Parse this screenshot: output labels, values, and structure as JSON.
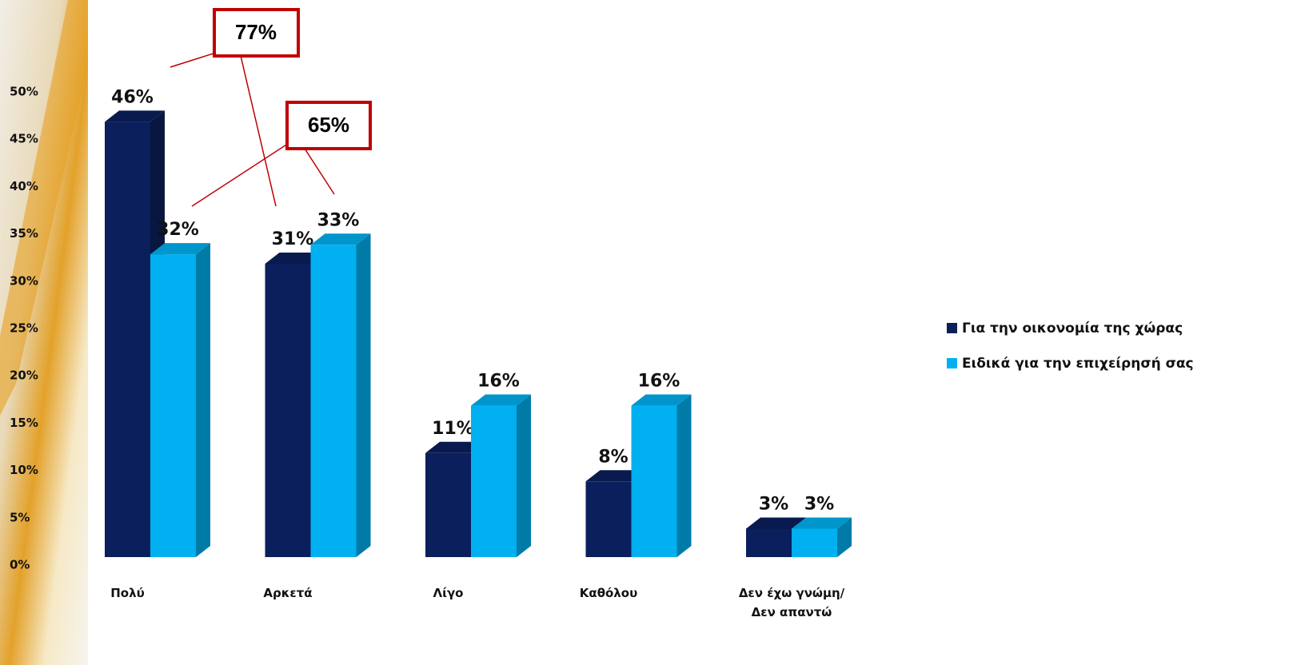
{
  "chart_data": {
    "type": "bar",
    "categories": [
      "Πολύ",
      "Αρκετά",
      "Λίγο",
      "Καθόλου",
      "Δεν έχω γνώμη/Δεν απαντώ"
    ],
    "series": [
      {
        "name": "Για την οικονομία της χώρας",
        "color": "#0b1f5c",
        "values": [
          46,
          31,
          11,
          8,
          3
        ],
        "value_labels": [
          "46%",
          "31%",
          "11%",
          "8%",
          "3%"
        ]
      },
      {
        "name": "Ειδικά για την επιχείρησή σας",
        "color": "#00b0f0",
        "values": [
          32,
          33,
          16,
          16,
          3
        ],
        "value_labels": [
          "32%",
          "33%",
          "16%",
          "16%",
          "3%"
        ]
      }
    ],
    "ylim": [
      0,
      50
    ],
    "yticks": [
      {
        "value": 0,
        "label": "0%"
      },
      {
        "value": 5,
        "label": "5%"
      },
      {
        "value": 10,
        "label": "10%"
      },
      {
        "value": 15,
        "label": "15%"
      },
      {
        "value": 20,
        "label": "20%"
      },
      {
        "value": 25,
        "label": "25%"
      },
      {
        "value": 30,
        "label": "30%"
      },
      {
        "value": 35,
        "label": "35%"
      },
      {
        "value": 40,
        "label": "40%"
      },
      {
        "value": 45,
        "label": "45%"
      },
      {
        "value": 50,
        "label": "50%"
      }
    ],
    "annotations": [
      {
        "text": "77%"
      },
      {
        "text": "65%"
      }
    ],
    "legend": "right"
  }
}
